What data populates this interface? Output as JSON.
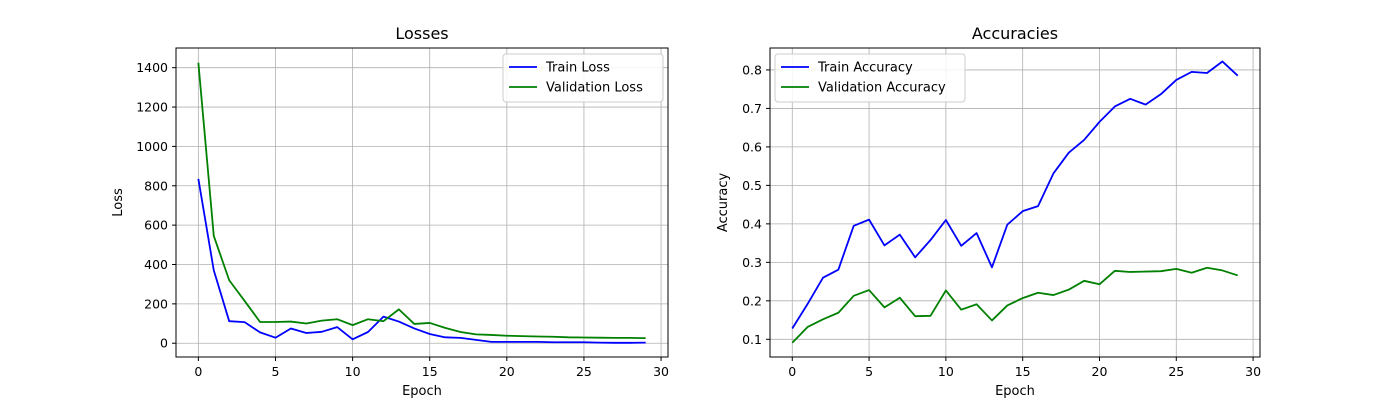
{
  "chart_data": [
    {
      "type": "line",
      "title": "Losses",
      "xlabel": "Epoch",
      "ylabel": "Loss",
      "xlim": [
        -1.45,
        30.45
      ],
      "ylim": [
        -70,
        1500
      ],
      "xticks": [
        0,
        5,
        10,
        15,
        20,
        25,
        30
      ],
      "yticks": [
        0,
        200,
        400,
        600,
        800,
        1000,
        1200,
        1400
      ],
      "grid": true,
      "legend": "top-right",
      "x": [
        0,
        1,
        2,
        3,
        4,
        5,
        6,
        7,
        8,
        9,
        10,
        11,
        12,
        13,
        14,
        15,
        16,
        17,
        18,
        19,
        20,
        21,
        22,
        23,
        24,
        25,
        26,
        27,
        28,
        29
      ],
      "series": [
        {
          "name": "Train Loss",
          "color": "#0000ff",
          "values": [
            835,
            370,
            112,
            107,
            55,
            28,
            75,
            52,
            58,
            82,
            20,
            57,
            135,
            110,
            75,
            47,
            30,
            27,
            17,
            7,
            7,
            7,
            7,
            5,
            5,
            5,
            3,
            2,
            2,
            3
          ]
        },
        {
          "name": "Validation Loss",
          "color": "#008000",
          "values": [
            1425,
            545,
            320,
            215,
            108,
            108,
            110,
            100,
            115,
            122,
            92,
            122,
            112,
            172,
            98,
            103,
            78,
            57,
            45,
            42,
            38,
            36,
            34,
            33,
            30,
            29,
            28,
            27,
            27,
            26
          ]
        }
      ]
    },
    {
      "type": "line",
      "title": "Accuracies",
      "xlabel": "Epoch",
      "ylabel": "Accuracy",
      "xlim": [
        -1.45,
        30.45
      ],
      "ylim": [
        0.054,
        0.857
      ],
      "xticks": [
        0,
        5,
        10,
        15,
        20,
        25,
        30
      ],
      "yticks": [
        0.1,
        0.2,
        0.3,
        0.4,
        0.5,
        0.6,
        0.7,
        0.8
      ],
      "grid": true,
      "legend": "top-left",
      "x": [
        0,
        1,
        2,
        3,
        4,
        5,
        6,
        7,
        8,
        9,
        10,
        11,
        12,
        13,
        14,
        15,
        16,
        17,
        18,
        19,
        20,
        21,
        22,
        23,
        24,
        25,
        26,
        27,
        28,
        29
      ],
      "series": [
        {
          "name": "Train Accuracy",
          "color": "#0000ff",
          "values": [
            0.128,
            0.192,
            0.26,
            0.281,
            0.395,
            0.411,
            0.344,
            0.372,
            0.313,
            0.358,
            0.41,
            0.343,
            0.376,
            0.287,
            0.398,
            0.433,
            0.446,
            0.531,
            0.585,
            0.618,
            0.665,
            0.705,
            0.725,
            0.71,
            0.737,
            0.774,
            0.795,
            0.792,
            0.822,
            0.785
          ]
        },
        {
          "name": "Validation Accuracy",
          "color": "#008000",
          "values": [
            0.091,
            0.132,
            0.152,
            0.169,
            0.213,
            0.228,
            0.183,
            0.208,
            0.16,
            0.161,
            0.227,
            0.177,
            0.191,
            0.149,
            0.188,
            0.207,
            0.221,
            0.215,
            0.229,
            0.252,
            0.243,
            0.278,
            0.275,
            0.276,
            0.277,
            0.283,
            0.273,
            0.286,
            0.279,
            0.266
          ]
        }
      ]
    }
  ]
}
